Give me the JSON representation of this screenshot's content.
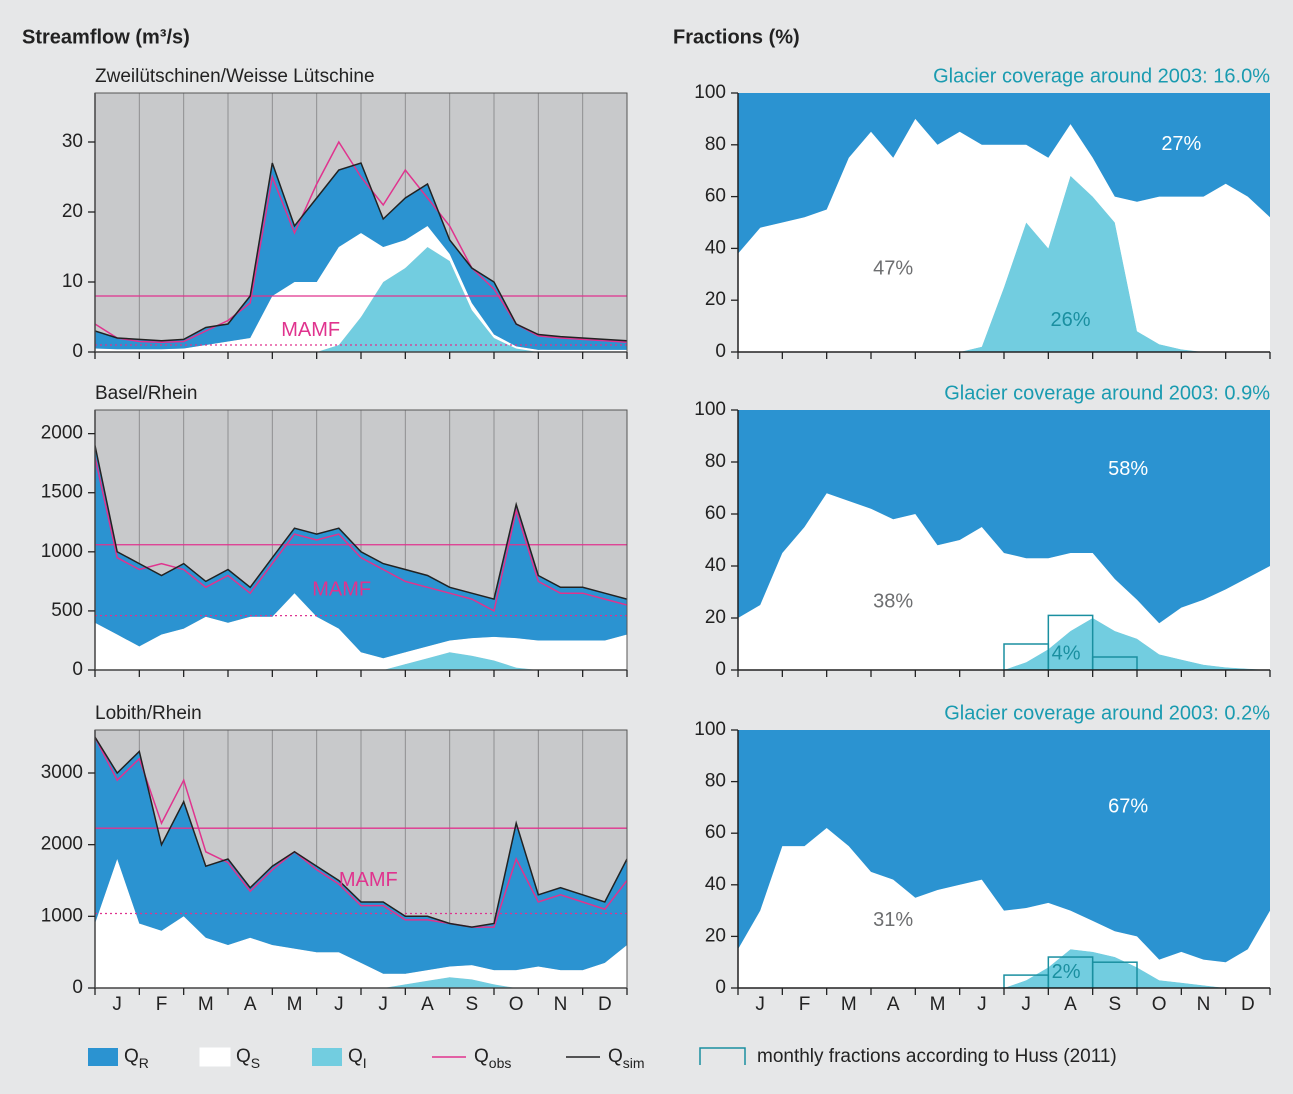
{
  "chart_data": [
    {
      "type": "streamflow",
      "heading": "Streamflow (m³/s)",
      "title": "Zweilütschinen/Weisse Lütschine",
      "x": [
        0,
        0.5,
        1,
        1.5,
        2,
        2.5,
        3,
        3.5,
        4,
        4.5,
        5,
        5.5,
        6,
        6.5,
        7,
        7.5,
        8,
        8.5,
        9,
        9.5,
        10,
        10.5,
        11,
        11.5,
        12
      ],
      "xlim": [
        0,
        12
      ],
      "xticks": [
        0,
        1,
        2,
        3,
        4,
        5,
        6,
        7,
        8,
        9,
        10,
        11,
        12
      ],
      "grid": true,
      "ylim": [
        0,
        37
      ],
      "yticks": [
        0,
        10,
        20,
        30
      ],
      "series": [
        {
          "style": "area",
          "color": "#72cde0",
          "values": [
            0,
            0,
            0,
            0,
            0,
            0,
            0,
            0,
            0,
            0,
            0,
            1,
            5,
            10,
            12,
            15,
            13,
            6,
            2,
            0.5,
            0,
            0,
            0,
            0,
            0
          ]
        },
        {
          "style": "area",
          "color": "#ffffff",
          "values": [
            0.5,
            0.4,
            0.4,
            0.4,
            0.5,
            1,
            1.5,
            2,
            8,
            10,
            10,
            14,
            12,
            5,
            4,
            3,
            1,
            1,
            0.5,
            0.3,
            0.3,
            0.3,
            0.3,
            0.3,
            0.3
          ]
        },
        {
          "style": "area",
          "color": "#2b93d1",
          "values": [
            2.5,
            1.6,
            1.4,
            1.2,
            1.3,
            2.5,
            2.5,
            6,
            19,
            8,
            12,
            11,
            10,
            4,
            6,
            6,
            2,
            5,
            7.5,
            3.2,
            2.2,
            1.9,
            1.7,
            1.5,
            1.3
          ]
        },
        {
          "style": "line",
          "color": "#e0338e",
          "values": [
            4,
            2,
            1.5,
            1.4,
            1.5,
            3,
            4.5,
            7,
            25,
            17,
            24,
            30,
            25,
            21,
            26,
            22,
            18,
            12,
            9,
            4,
            2.3,
            2,
            1.8,
            1.6,
            1.4
          ]
        },
        {
          "style": "line",
          "color": "#222222",
          "values": [
            3,
            2,
            1.8,
            1.6,
            1.8,
            3.5,
            4,
            8,
            27,
            18,
            22,
            26,
            27,
            19,
            22,
            24,
            16,
            12,
            10,
            4,
            2.5,
            2.2,
            2,
            1.8,
            1.6
          ]
        }
      ],
      "reference_lines": [
        {
          "value": 8,
          "style": "solid"
        },
        {
          "value": 1,
          "style": "dotted"
        }
      ],
      "reference_label": "MAMF",
      "reference_color": "#e0338e"
    },
    {
      "type": "streamflow",
      "title": "Basel/Rhein",
      "x": [
        0,
        0.5,
        1,
        1.5,
        2,
        2.5,
        3,
        3.5,
        4,
        4.5,
        5,
        5.5,
        6,
        6.5,
        7,
        7.5,
        8,
        8.5,
        9,
        9.5,
        10,
        10.5,
        11,
        11.5,
        12
      ],
      "xlim": [
        0,
        12
      ],
      "xticks": [
        0,
        1,
        2,
        3,
        4,
        5,
        6,
        7,
        8,
        9,
        10,
        11,
        12
      ],
      "grid": true,
      "ylim": [
        0,
        2200
      ],
      "yticks": [
        0,
        500,
        1000,
        1500,
        2000
      ],
      "series": [
        {
          "style": "area",
          "color": "#72cde0",
          "values": [
            0,
            0,
            0,
            0,
            0,
            0,
            0,
            0,
            0,
            0,
            0,
            0,
            0,
            0,
            50,
            100,
            150,
            120,
            80,
            20,
            0,
            0,
            0,
            0,
            0
          ]
        },
        {
          "style": "area",
          "color": "#ffffff",
          "values": [
            400,
            300,
            200,
            300,
            350,
            450,
            400,
            450,
            450,
            650,
            450,
            350,
            150,
            100,
            100,
            100,
            100,
            150,
            200,
            250,
            250,
            250,
            250,
            250,
            300
          ]
        },
        {
          "style": "area",
          "color": "#2b93d1",
          "values": [
            1500,
            700,
            700,
            500,
            550,
            300,
            450,
            250,
            500,
            550,
            700,
            850,
            850,
            800,
            700,
            600,
            450,
            380,
            320,
            1130,
            550,
            450,
            450,
            400,
            300
          ]
        },
        {
          "style": "line",
          "color": "#e0338e",
          "values": [
            1800,
            950,
            850,
            900,
            850,
            700,
            800,
            650,
            900,
            1150,
            1100,
            1150,
            950,
            850,
            750,
            700,
            650,
            600,
            500,
            1350,
            750,
            650,
            650,
            600,
            550
          ]
        },
        {
          "style": "line",
          "color": "#222222",
          "values": [
            1900,
            1000,
            900,
            800,
            900,
            750,
            850,
            700,
            950,
            1200,
            1150,
            1200,
            1000,
            900,
            850,
            800,
            700,
            650,
            600,
            1400,
            800,
            700,
            700,
            650,
            600
          ]
        }
      ],
      "reference_lines": [
        {
          "value": 1060,
          "style": "solid"
        },
        {
          "value": 460,
          "style": "dotted"
        }
      ],
      "reference_label": "MAMF",
      "reference_color": "#e0338e"
    },
    {
      "type": "streamflow",
      "title": "Lobith/Rhein",
      "x": [
        0,
        0.5,
        1,
        1.5,
        2,
        2.5,
        3,
        3.5,
        4,
        4.5,
        5,
        5.5,
        6,
        6.5,
        7,
        7.5,
        8,
        8.5,
        9,
        9.5,
        10,
        10.5,
        11,
        11.5,
        12
      ],
      "xlim": [
        0,
        12
      ],
      "xticks": [
        0,
        1,
        2,
        3,
        4,
        5,
        6,
        7,
        8,
        9,
        10,
        11,
        12
      ],
      "grid": true,
      "categories": [
        "J",
        "F",
        "M",
        "A",
        "M",
        "J",
        "J",
        "A",
        "S",
        "O",
        "N",
        "D"
      ],
      "ylim": [
        0,
        3600
      ],
      "yticks": [
        0,
        1000,
        2000,
        3000
      ],
      "series": [
        {
          "style": "area",
          "color": "#72cde0",
          "values": [
            0,
            0,
            0,
            0,
            0,
            0,
            0,
            0,
            0,
            0,
            0,
            0,
            0,
            0,
            50,
            100,
            150,
            120,
            50,
            0,
            0,
            0,
            0,
            0,
            0
          ]
        },
        {
          "style": "area",
          "color": "#ffffff",
          "values": [
            900,
            1800,
            900,
            800,
            1000,
            700,
            600,
            700,
            600,
            550,
            500,
            500,
            350,
            200,
            150,
            150,
            150,
            200,
            200,
            250,
            300,
            250,
            250,
            350,
            600
          ]
        },
        {
          "style": "area",
          "color": "#2b93d1",
          "values": [
            2600,
            1200,
            2400,
            1200,
            1600,
            1000,
            1200,
            700,
            1100,
            1350,
            1200,
            1000,
            850,
            1000,
            800,
            750,
            600,
            530,
            650,
            2050,
            1000,
            1150,
            1050,
            850,
            1200
          ]
        },
        {
          "style": "line",
          "color": "#e0338e",
          "values": [
            3500,
            2900,
            3200,
            2300,
            2900,
            1900,
            1750,
            1350,
            1650,
            1900,
            1650,
            1450,
            1150,
            1150,
            950,
            950,
            900,
            850,
            850,
            1800,
            1200,
            1300,
            1200,
            1100,
            1500
          ]
        },
        {
          "style": "line",
          "color": "#222222",
          "values": [
            3500,
            3000,
            3300,
            2000,
            2600,
            1700,
            1800,
            1400,
            1700,
            1900,
            1700,
            1500,
            1200,
            1200,
            1000,
            1000,
            900,
            850,
            900,
            2300,
            1300,
            1400,
            1300,
            1200,
            1800
          ]
        }
      ],
      "reference_lines": [
        {
          "value": 2230,
          "style": "solid"
        },
        {
          "value": 1040,
          "style": "dotted"
        }
      ],
      "reference_label": "MAMF",
      "reference_color": "#e0338e"
    },
    {
      "type": "fractions",
      "heading": "Fractions (%)",
      "title": "Glacier coverage around 2003: 16.0%",
      "x": [
        0,
        0.5,
        1,
        1.5,
        2,
        2.5,
        3,
        3.5,
        4,
        4.5,
        5,
        5.5,
        6,
        6.5,
        7,
        7.5,
        8,
        8.5,
        9,
        9.5,
        10,
        10.5,
        11,
        11.5,
        12
      ],
      "xlim": [
        0,
        12
      ],
      "xticks": [
        0,
        1,
        2,
        3,
        4,
        5,
        6,
        7,
        8,
        9,
        10,
        11,
        12
      ],
      "ylim": [
        0,
        100
      ],
      "yticks": [
        0,
        20,
        40,
        60,
        80,
        100
      ],
      "series": [
        {
          "style": "area",
          "color": "#72cde0",
          "share_label": "26%",
          "values": [
            0,
            0,
            0,
            0,
            0,
            0,
            0,
            0,
            0,
            0,
            0,
            2,
            25,
            50,
            40,
            68,
            60,
            50,
            8,
            3,
            1,
            0,
            0,
            0,
            0
          ]
        },
        {
          "style": "area",
          "color": "#ffffff",
          "share_label": "47%",
          "values": [
            38,
            48,
            50,
            52,
            55,
            75,
            85,
            75,
            90,
            80,
            85,
            78,
            55,
            30,
            35,
            20,
            15,
            10,
            50,
            57,
            59,
            60,
            65,
            60,
            52
          ]
        },
        {
          "style": "area",
          "color": "#2b93d1",
          "share_label": "27%",
          "values": [
            62,
            52,
            50,
            48,
            45,
            25,
            15,
            25,
            10,
            20,
            15,
            20,
            20,
            20,
            25,
            12,
            25,
            40,
            42,
            40,
            40,
            40,
            35,
            40,
            48
          ]
        }
      ]
    },
    {
      "type": "fractions",
      "title": "Glacier coverage around 2003: 0.9%",
      "x": [
        0,
        0.5,
        1,
        1.5,
        2,
        2.5,
        3,
        3.5,
        4,
        4.5,
        5,
        5.5,
        6,
        6.5,
        7,
        7.5,
        8,
        8.5,
        9,
        9.5,
        10,
        10.5,
        11,
        11.5,
        12
      ],
      "xlim": [
        0,
        12
      ],
      "xticks": [
        0,
        1,
        2,
        3,
        4,
        5,
        6,
        7,
        8,
        9,
        10,
        11,
        12
      ],
      "ylim": [
        0,
        100
      ],
      "yticks": [
        0,
        20,
        40,
        60,
        80,
        100
      ],
      "series": [
        {
          "style": "area",
          "color": "#72cde0",
          "share_label": "4%",
          "values": [
            0,
            0,
            0,
            0,
            0,
            0,
            0,
            0,
            0,
            0,
            0,
            0,
            0,
            3,
            8,
            15,
            20,
            15,
            12,
            6,
            4,
            2,
            1,
            0.5,
            0
          ]
        },
        {
          "style": "area",
          "color": "#ffffff",
          "share_label": "38%",
          "values": [
            20,
            25,
            45,
            55,
            68,
            65,
            62,
            58,
            60,
            48,
            50,
            55,
            45,
            40,
            35,
            30,
            25,
            20,
            15,
            12,
            20,
            25,
            30,
            35,
            40
          ]
        },
        {
          "style": "area",
          "color": "#2b93d1",
          "share_label": "58%",
          "values": [
            80,
            75,
            55,
            45,
            32,
            35,
            38,
            42,
            40,
            52,
            50,
            45,
            55,
            57,
            57,
            55,
            55,
            65,
            73,
            82,
            76,
            73,
            69,
            64.5,
            60
          ]
        }
      ],
      "monthly_fractions": {
        "x": [
          6,
          7,
          8
        ],
        "values": [
          10,
          21,
          5
        ],
        "color": "#1a8fa0"
      }
    },
    {
      "type": "fractions",
      "title": "Glacier coverage around 2003: 0.2%",
      "x": [
        0,
        0.5,
        1,
        1.5,
        2,
        2.5,
        3,
        3.5,
        4,
        4.5,
        5,
        5.5,
        6,
        6.5,
        7,
        7.5,
        8,
        8.5,
        9,
        9.5,
        10,
        10.5,
        11,
        11.5,
        12
      ],
      "xlim": [
        0,
        12
      ],
      "xticks": [
        0,
        1,
        2,
        3,
        4,
        5,
        6,
        7,
        8,
        9,
        10,
        11,
        12
      ],
      "categories": [
        "J",
        "F",
        "M",
        "A",
        "M",
        "J",
        "J",
        "A",
        "S",
        "O",
        "N",
        "D"
      ],
      "ylim": [
        0,
        100
      ],
      "yticks": [
        0,
        20,
        40,
        60,
        80,
        100
      ],
      "series": [
        {
          "style": "area",
          "color": "#72cde0",
          "share_label": "2%",
          "values": [
            0,
            0,
            0,
            0,
            0,
            0,
            0,
            0,
            0,
            0,
            0,
            0,
            0,
            3,
            8,
            15,
            14,
            12,
            8,
            3,
            2,
            1,
            0,
            0,
            0
          ]
        },
        {
          "style": "area",
          "color": "#ffffff",
          "share_label": "31%",
          "values": [
            15,
            30,
            55,
            55,
            62,
            55,
            45,
            42,
            35,
            38,
            40,
            42,
            30,
            28,
            25,
            15,
            12,
            10,
            12,
            8,
            12,
            10,
            10,
            15,
            30
          ]
        },
        {
          "style": "area",
          "color": "#2b93d1",
          "share_label": "67%",
          "values": [
            85,
            70,
            45,
            45,
            38,
            45,
            55,
            58,
            65,
            62,
            60,
            58,
            70,
            69,
            67,
            70,
            74,
            78,
            80,
            89,
            86,
            89,
            90,
            85,
            70
          ]
        }
      ],
      "monthly_fractions": {
        "x": [
          6,
          7,
          8
        ],
        "values": [
          5,
          12,
          10
        ],
        "color": "#1a8fa0"
      }
    }
  ],
  "legend": [
    {
      "label": "Q",
      "sub": "R",
      "color": "#2b93d1",
      "kind": "box"
    },
    {
      "label": "Q",
      "sub": "S",
      "color": "#ffffff",
      "kind": "box"
    },
    {
      "label": "Q",
      "sub": "I",
      "color": "#72cde0",
      "kind": "box"
    },
    {
      "label": "Q",
      "sub": "obs",
      "color": "#e0338e",
      "kind": "line"
    },
    {
      "label": "Q",
      "sub": "sim",
      "color": "#222222",
      "kind": "line"
    },
    {
      "label": "monthly fractions according to Huss (2011)",
      "color": "#1a8fa0",
      "kind": "outline"
    }
  ]
}
